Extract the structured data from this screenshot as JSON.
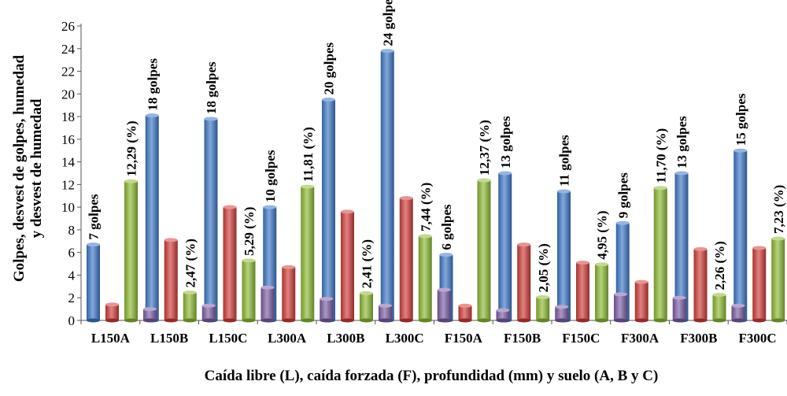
{
  "chart_data": {
    "type": "bar",
    "ylabel_line1": "Golpes, desvest de golpes, humedad",
    "ylabel_line2": "y desvest de humedad",
    "xlabel": "Caída libre (L), caída forzada (F), profundidad (mm) y suelo (A, B y C)",
    "ylim": [
      0,
      26
    ],
    "yticks": [
      0,
      2,
      4,
      6,
      8,
      10,
      12,
      14,
      16,
      18,
      20,
      22,
      24,
      26
    ],
    "grid": false,
    "legend": "none",
    "style": "3d-cylinder",
    "categories": [
      "L150A",
      "L150B",
      "L150C",
      "L300A",
      "L300B",
      "L300C",
      "F150A",
      "F150B",
      "F150C",
      "F300A",
      "F300B",
      "F300C"
    ],
    "series": [
      {
        "color": "#3f79c9",
        "values": [
          6.7,
          18.1,
          17.8,
          10.0,
          19.5,
          23.8,
          5.8,
          13.0,
          11.4,
          8.6,
          13.0,
          15.0
        ],
        "labels": [
          "7 golpes",
          "18 golpes",
          "18 golpes",
          "10 golpes",
          "20 golpes",
          "24 golpes",
          "6 golpes",
          "13 golpes",
          "11 golpes",
          "9 golpes",
          "13 golpes",
          "15 golpes"
        ]
      },
      {
        "color": "#d23e3b",
        "values": [
          1.4,
          7.1,
          10.0,
          4.7,
          9.6,
          10.8,
          1.3,
          6.7,
          5.1,
          3.4,
          6.3,
          6.4
        ],
        "labels": []
      },
      {
        "color": "#8fbc35",
        "values": [
          12.29,
          2.47,
          5.29,
          11.81,
          2.41,
          7.44,
          12.37,
          2.05,
          4.95,
          11.7,
          2.26,
          7.23
        ],
        "labels": [
          "12,29 (%)",
          "2,47 (%)",
          "5,29 (%)",
          "11,81 (%)",
          "2,41 (%)",
          "7,44 (%)",
          "12,37 (%)",
          "2,05 (%)",
          "4,95 (%)",
          "11,70 (%)",
          "2,26 (%)",
          "7,23 (%)"
        ]
      },
      {
        "color": "#7d60a8",
        "values": [
          1.0,
          1.3,
          2.9,
          1.9,
          1.3,
          2.7,
          0.9,
          1.2,
          2.3,
          2.0,
          1.3,
          2.7
        ],
        "labels": []
      }
    ]
  }
}
